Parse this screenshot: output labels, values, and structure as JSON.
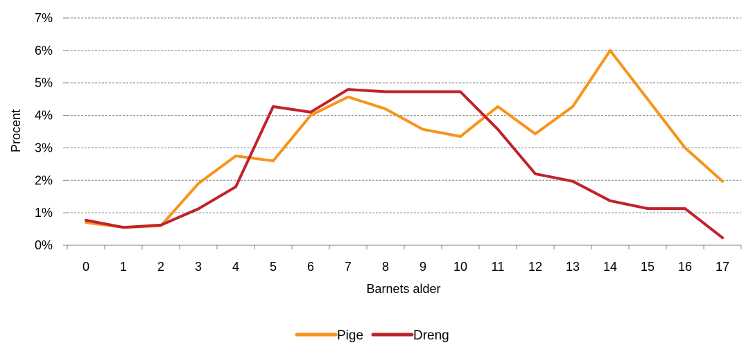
{
  "chart_data": {
    "type": "line",
    "xlabel": "Barnets alder",
    "ylabel": "Procent",
    "categories": [
      "0",
      "1",
      "2",
      "3",
      "4",
      "5",
      "6",
      "7",
      "8",
      "9",
      "10",
      "11",
      "12",
      "13",
      "14",
      "15",
      "16",
      "17"
    ],
    "yticks": [
      "0%",
      "1%",
      "2%",
      "3%",
      "4%",
      "5%",
      "6%",
      "7%"
    ],
    "ylim": [
      0,
      7
    ],
    "grid": true,
    "legend_position": "bottom",
    "series": [
      {
        "name": "Pige",
        "color": "#F7941D",
        "values": [
          0.7,
          0.55,
          0.6,
          1.9,
          2.75,
          2.6,
          4.0,
          4.57,
          4.2,
          3.57,
          3.35,
          4.27,
          3.43,
          4.27,
          6.0,
          4.5,
          3.0,
          1.97
        ]
      },
      {
        "name": "Dreng",
        "color": "#C0232C",
        "values": [
          0.77,
          0.55,
          0.62,
          1.12,
          1.8,
          4.27,
          4.1,
          4.8,
          4.73,
          4.73,
          4.73,
          3.57,
          2.2,
          1.97,
          1.37,
          1.13,
          1.13,
          0.23
        ]
      }
    ]
  }
}
